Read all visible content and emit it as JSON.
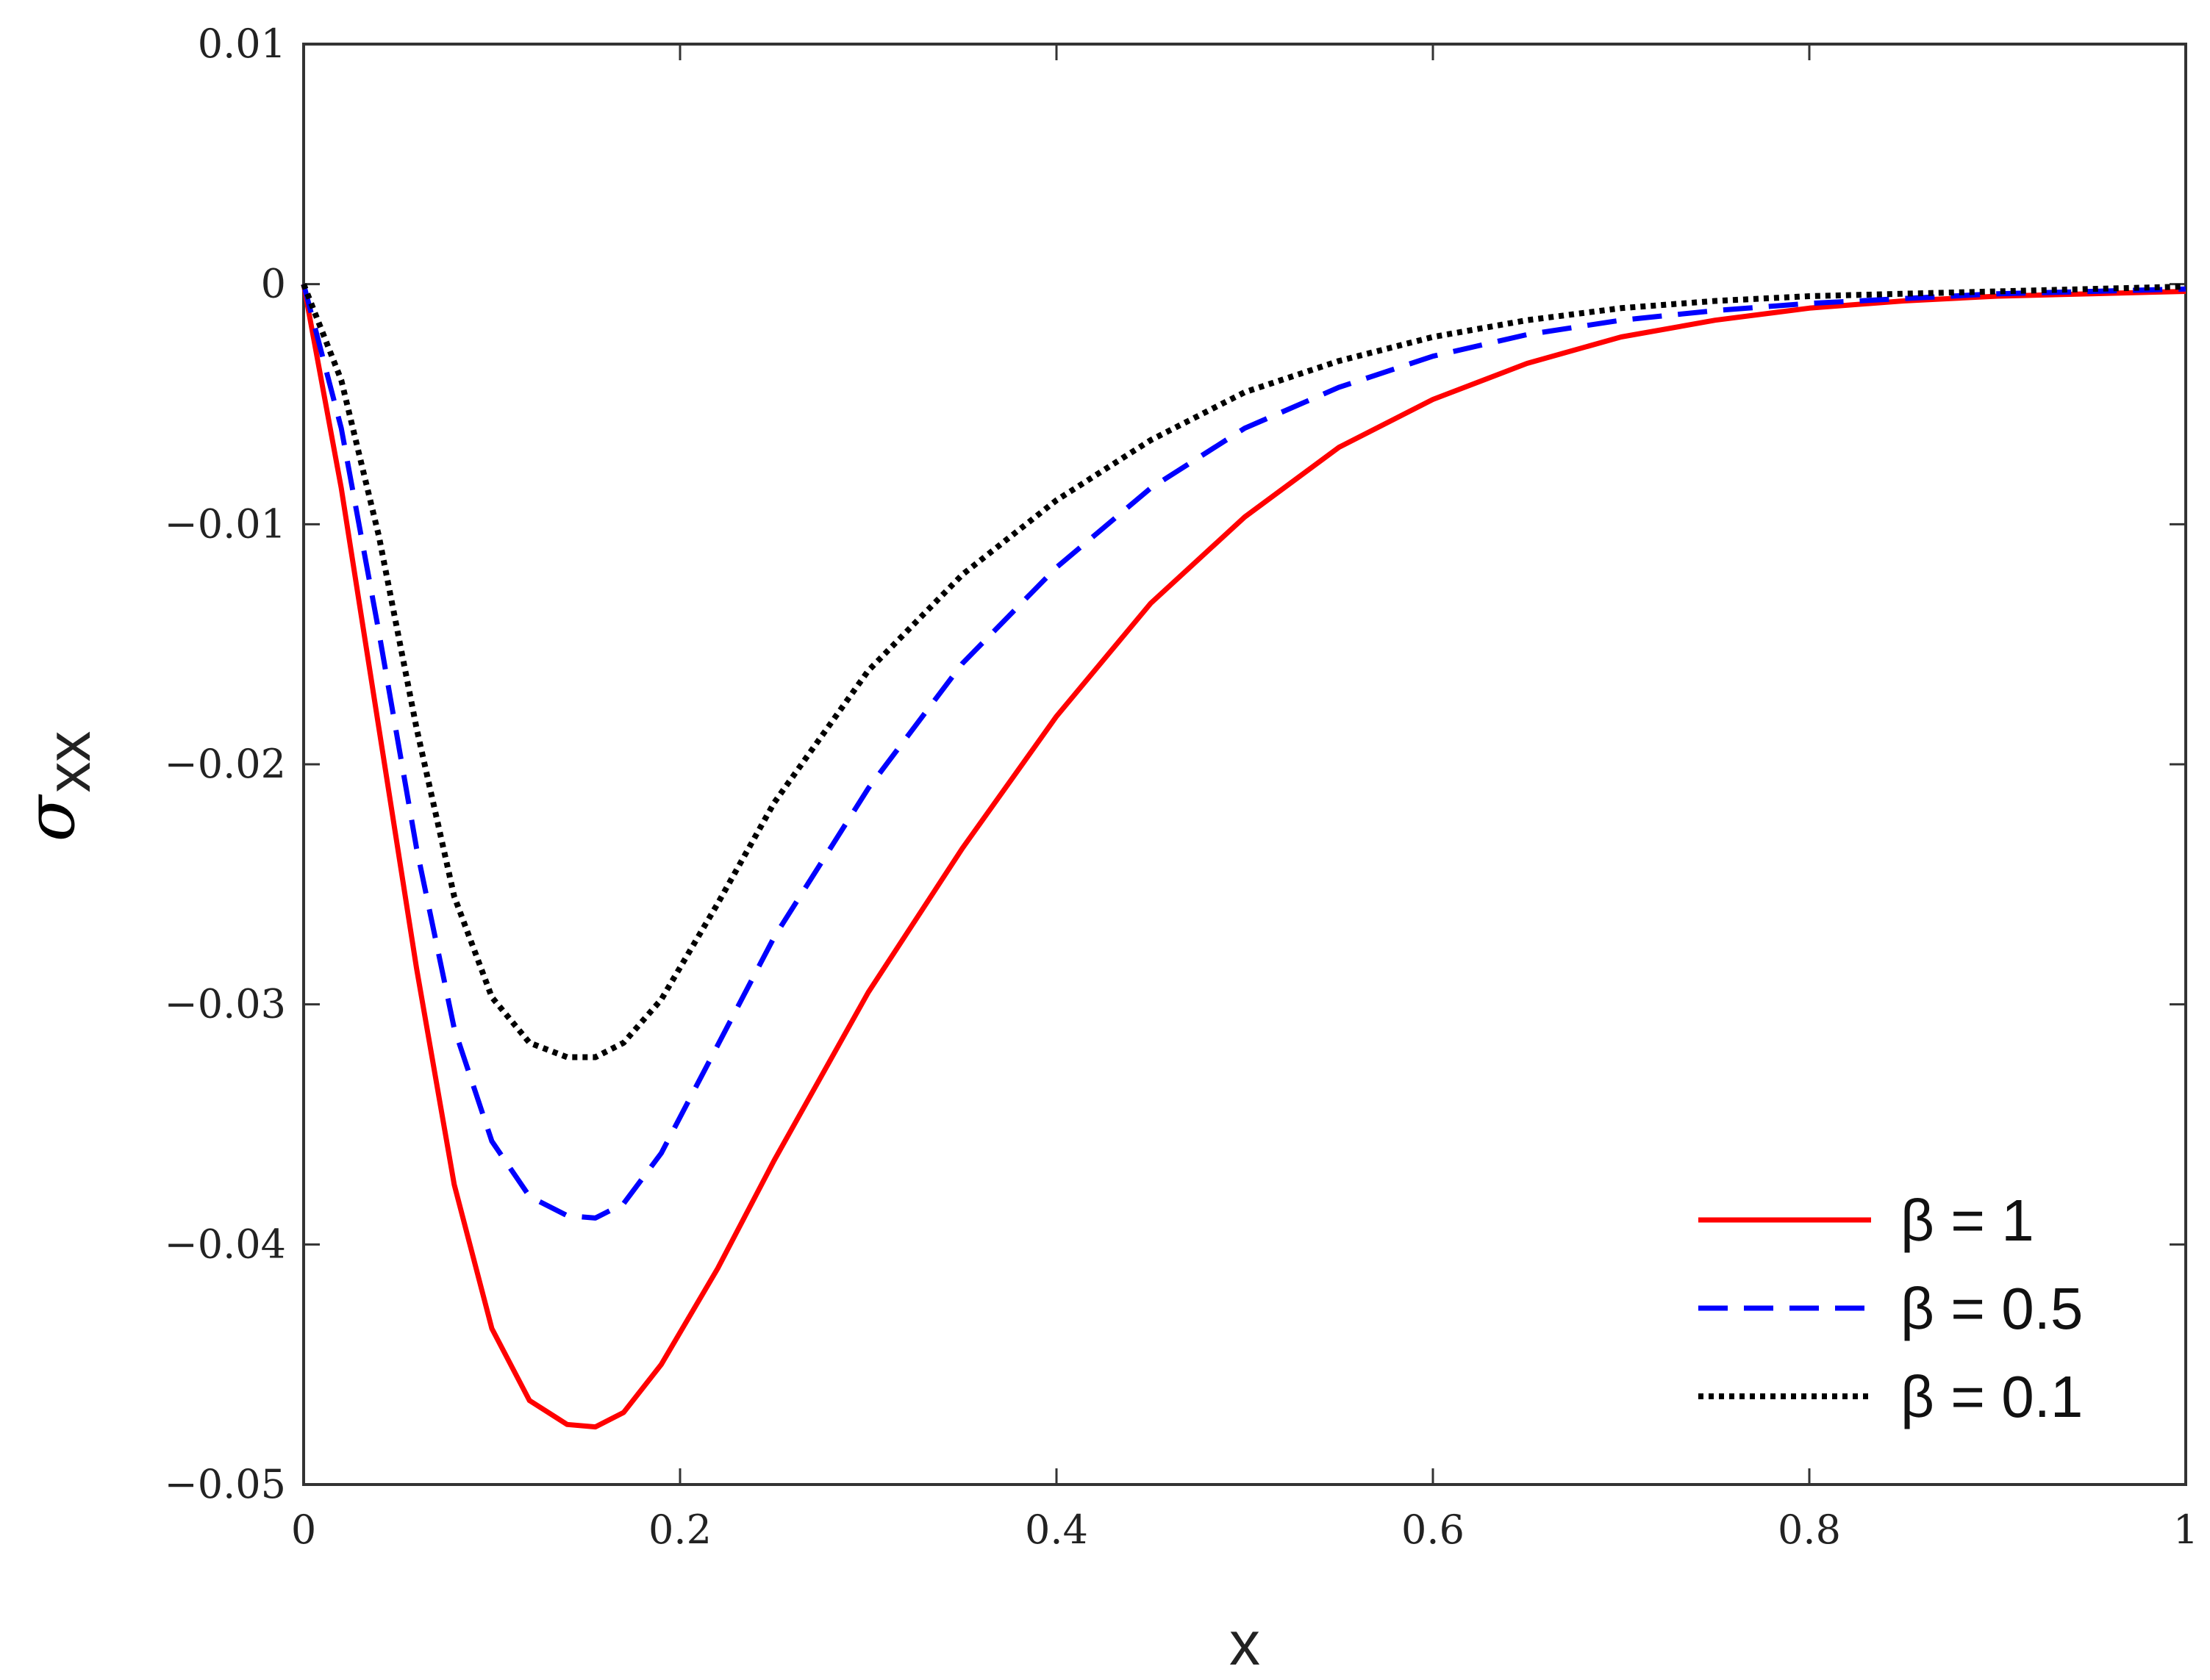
{
  "chart_data": {
    "type": "line",
    "title": "",
    "xlabel": "x",
    "ylabel": "σ",
    "ylabel_subscript": "xx",
    "xlim": [
      0,
      1
    ],
    "ylim": [
      -0.05,
      0.01
    ],
    "xticks": [
      0,
      0.2,
      0.4,
      0.6,
      0.8,
      1
    ],
    "xtick_labels": [
      "0",
      "0.2",
      "0.4",
      "0.6",
      "0.8",
      "1"
    ],
    "yticks": [
      0.01,
      0,
      -0.01,
      -0.02,
      -0.03,
      -0.04,
      -0.05
    ],
    "ytick_labels": [
      "0.01",
      "0",
      "−0.01",
      "−0.02",
      "−0.03",
      "−0.04",
      "−0.05"
    ],
    "grid": false,
    "box": true,
    "legend_position": "bottom-right",
    "x": [
      0,
      0.02,
      0.04,
      0.06,
      0.08,
      0.1,
      0.12,
      0.14,
      0.155,
      0.17,
      0.19,
      0.22,
      0.25,
      0.3,
      0.35,
      0.4,
      0.45,
      0.5,
      0.55,
      0.6,
      0.65,
      0.7,
      0.75,
      0.8,
      0.85,
      0.9,
      0.95,
      1.0
    ],
    "series": [
      {
        "name": "β = 1",
        "color": "#ff0000",
        "line_style": "solid",
        "values": [
          0,
          -0.0085,
          -0.0185,
          -0.0285,
          -0.0375,
          -0.0435,
          -0.0465,
          -0.0475,
          -0.0476,
          -0.047,
          -0.045,
          -0.041,
          -0.0365,
          -0.0295,
          -0.0235,
          -0.018,
          -0.0133,
          -0.0097,
          -0.0068,
          -0.0048,
          -0.0033,
          -0.0022,
          -0.0015,
          -0.001,
          -0.0007,
          -0.0005,
          -0.0004,
          -0.0003
        ]
      },
      {
        "name": "β = 0.5",
        "color": "#0000ff",
        "line_style": "dashed",
        "values": [
          0,
          -0.006,
          -0.0145,
          -0.0235,
          -0.031,
          -0.0357,
          -0.038,
          -0.0388,
          -0.0389,
          -0.0383,
          -0.0362,
          -0.0317,
          -0.0272,
          -0.021,
          -0.0158,
          -0.0118,
          -0.0085,
          -0.006,
          -0.0043,
          -0.003,
          -0.0021,
          -0.0015,
          -0.0011,
          -0.0008,
          -0.0006,
          -0.0004,
          -0.0003,
          -0.0002
        ]
      },
      {
        "name": "β = 0.1",
        "color": "#000000",
        "line_style": "dotted",
        "values": [
          0,
          -0.004,
          -0.0105,
          -0.0185,
          -0.0255,
          -0.0297,
          -0.0316,
          -0.0322,
          -0.0322,
          -0.0316,
          -0.0298,
          -0.0258,
          -0.0216,
          -0.0161,
          -0.0121,
          -0.009,
          -0.0065,
          -0.0045,
          -0.0032,
          -0.0022,
          -0.0015,
          -0.001,
          -0.0007,
          -0.0005,
          -0.0004,
          -0.0003,
          -0.0002,
          -0.0001
        ]
      }
    ]
  }
}
